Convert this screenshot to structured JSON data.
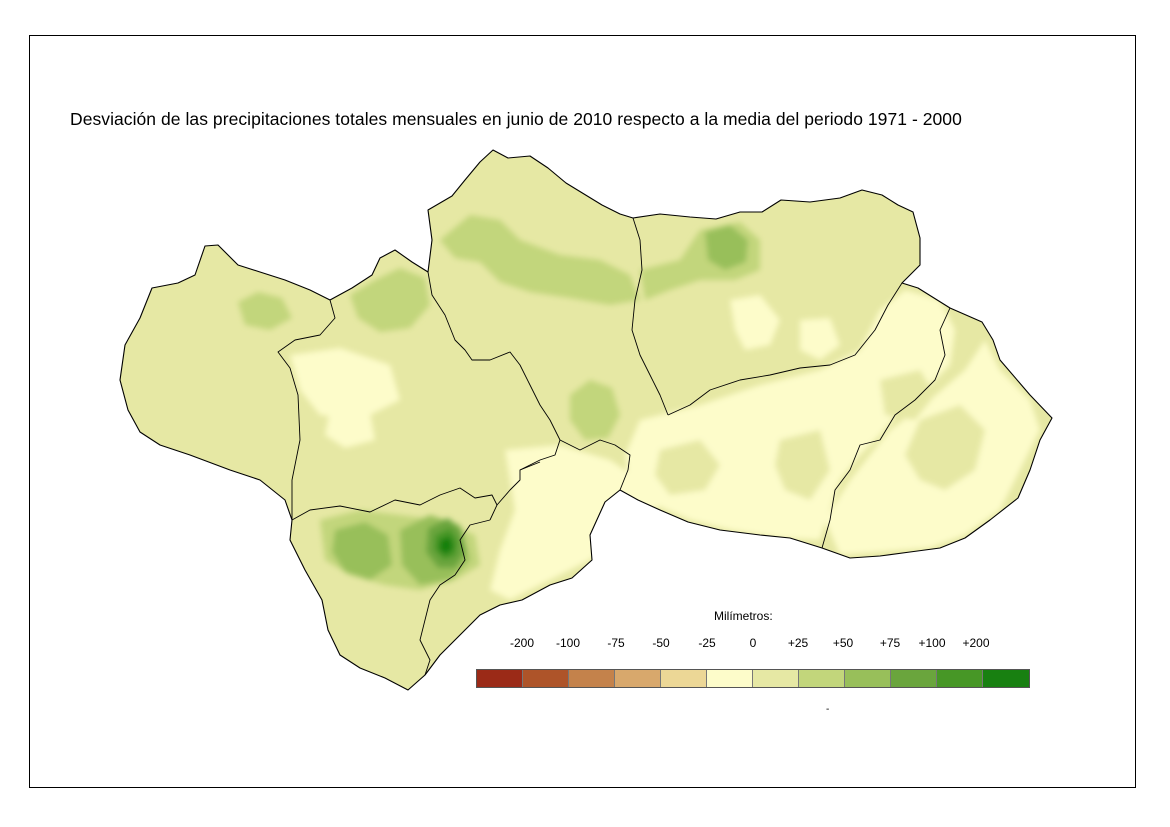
{
  "title": "Desviación de las precipitaciones totales mensuales en junio de 2010 respecto a la media del periodo 1971 - 2000",
  "legend": {
    "title": "Milímetros:",
    "labels": [
      "-200",
      "-100",
      "-75",
      "-50",
      "-25",
      "0",
      "+25",
      "+50",
      "+75",
      "+100",
      "+200"
    ],
    "colors": [
      "#9b2a17",
      "#ae5429",
      "#c4824b",
      "#d8a86c",
      "#ecd796",
      "#fdfcca",
      "#e6e8a4",
      "#c2d67b",
      "#98bf5a",
      "#6aa53d",
      "#479726",
      "#188011"
    ],
    "footnote": "-"
  },
  "map": {
    "region": "Andalucía",
    "colors": {
      "base": "#e6e8a4",
      "dry": "#fdfcca",
      "wet_1": "#c2d67b",
      "wet_2": "#98bf5a",
      "wet_3": "#6aa53d",
      "wet_4": "#479726",
      "wet_5": "#188011",
      "border": "#000000"
    }
  }
}
